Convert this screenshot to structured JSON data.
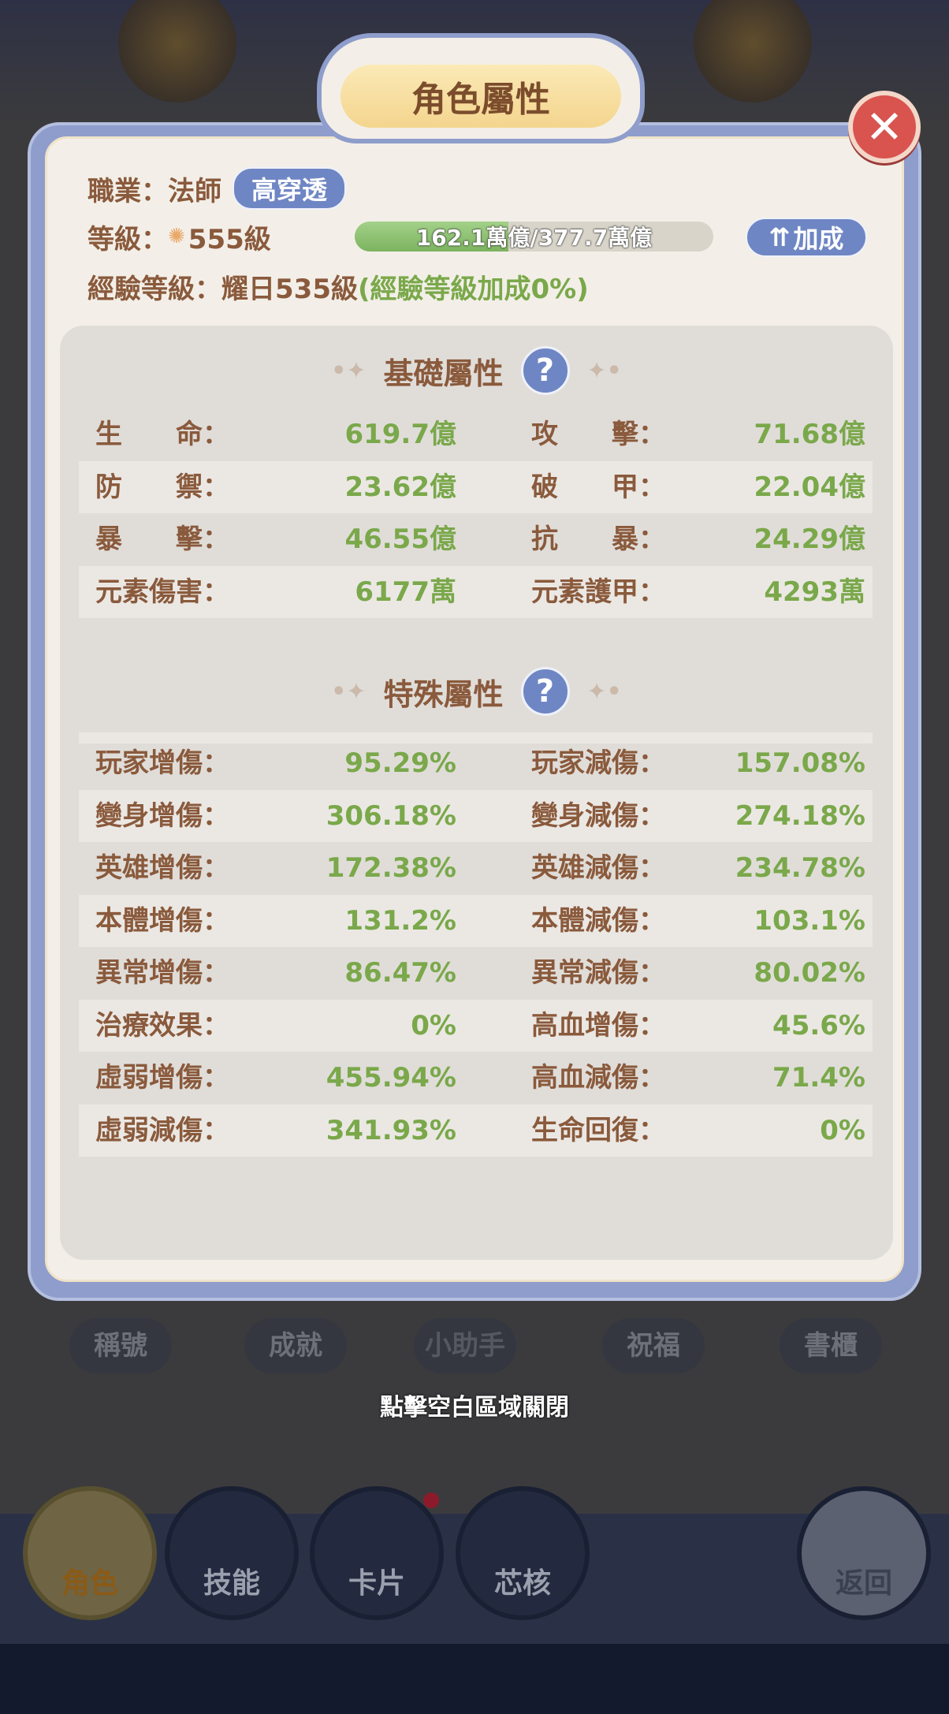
{
  "title": "角色屬性",
  "close_icon": "close-icon",
  "info": {
    "class_label": "職業：",
    "class_value": "法師",
    "class_tag": "高穿透",
    "level_label": "等級：",
    "level_value": "555級",
    "exp_progress": "162.1萬億/377.7萬億",
    "exp_fraction": 0.429,
    "bonus_button": "加成",
    "exp_level_label": "經驗等級：",
    "exp_level_value": "耀日535級",
    "exp_level_bonus": "(經驗等級加成0%)"
  },
  "basic": {
    "heading": "基礎屬性",
    "help": "?",
    "rows": [
      {
        "l1": "生　　命：",
        "v1": "619.7億",
        "l2": "攻　　擊：",
        "v2": "71.68億"
      },
      {
        "l1": "防　　禦：",
        "v1": "23.62億",
        "l2": "破　　甲：",
        "v2": "22.04億"
      },
      {
        "l1": "暴　　擊：",
        "v1": "46.55億",
        "l2": "抗　　暴：",
        "v2": "24.29億"
      },
      {
        "l1": "元素傷害：",
        "v1": "6177萬",
        "l2": "元素護甲：",
        "v2": "4293萬"
      }
    ]
  },
  "special": {
    "heading": "特殊屬性",
    "help": "?",
    "rows": [
      {
        "l1": "玩家增傷：",
        "v1": "95.29%",
        "l2": "玩家減傷：",
        "v2": "157.08%"
      },
      {
        "l1": "變身增傷：",
        "v1": "306.18%",
        "l2": "變身減傷：",
        "v2": "274.18%"
      },
      {
        "l1": "英雄增傷：",
        "v1": "172.38%",
        "l2": "英雄減傷：",
        "v2": "234.78%"
      },
      {
        "l1": "本體增傷：",
        "v1": "131.2%",
        "l2": "本體減傷：",
        "v2": "103.1%"
      },
      {
        "l1": "異常增傷：",
        "v1": "86.47%",
        "l2": "異常減傷：",
        "v2": "80.02%"
      },
      {
        "l1": "治療效果：",
        "v1": "0%",
        "l2": "高血增傷：",
        "v2": "45.6%"
      },
      {
        "l1": "虛弱增傷：",
        "v1": "455.94%",
        "l2": "高血減傷：",
        "v2": "71.4%"
      },
      {
        "l1": "虛弱減傷：",
        "v1": "341.93%",
        "l2": "生命回復：",
        "v2": "0%"
      }
    ]
  },
  "close_hint": "點擊空白區域關閉",
  "shelf": [
    "稱號",
    "成就",
    "小助手",
    "祝福",
    "書櫃"
  ],
  "nav": [
    "角色",
    "技能",
    "卡片",
    "芯核",
    "返回"
  ],
  "colors": {
    "label": "#8a5a3c",
    "value": "#7aa84a",
    "accent": "#6f86c4",
    "close": "#d9534f"
  }
}
